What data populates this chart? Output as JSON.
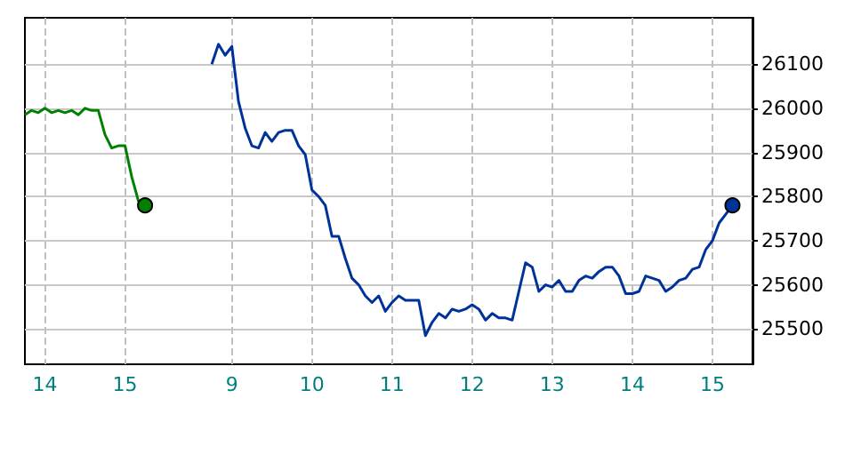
{
  "chart_data": {
    "type": "line",
    "categories": [
      null,
      null,
      null,
      "14",
      null,
      null,
      null,
      null,
      null,
      null,
      null,
      null,
      null,
      null,
      null,
      "15",
      null,
      null,
      null,
      null,
      null,
      null,
      null,
      null,
      null,
      null,
      null,
      null,
      null,
      null,
      null,
      "9",
      null,
      null,
      null,
      null,
      null,
      null,
      null,
      null,
      null,
      null,
      null,
      "10",
      null,
      null,
      null,
      null,
      null,
      null,
      null,
      null,
      null,
      null,
      null,
      "11",
      null,
      null,
      null,
      null,
      null,
      null,
      null,
      null,
      null,
      null,
      null,
      "12",
      null,
      null,
      null,
      null,
      null,
      null,
      null,
      null,
      null,
      null,
      null,
      "13",
      null,
      null,
      null,
      null,
      null,
      null,
      null,
      null,
      null,
      null,
      null,
      "14",
      null,
      null,
      null,
      null,
      null,
      null,
      null,
      null,
      null,
      null,
      null,
      "15",
      null,
      null,
      null,
      null,
      null,
      null
    ],
    "series": [
      {
        "color": "#008000",
        "values": [
          25985,
          25995,
          25990,
          26000,
          25990,
          25995,
          25990,
          25995,
          25985,
          26000,
          25995,
          25995,
          25940,
          25910,
          25915,
          25915,
          25845,
          25790,
          25780,
          null,
          null,
          null,
          null,
          null,
          null,
          null,
          null,
          null,
          null,
          null,
          null,
          null,
          null,
          null,
          null,
          null,
          null,
          null,
          null,
          null,
          null,
          null,
          null,
          null,
          null,
          null,
          null,
          null,
          null,
          null,
          null,
          null,
          null,
          null,
          null,
          null,
          null,
          null,
          null,
          null,
          null,
          null,
          null,
          null,
          null,
          null,
          null,
          null,
          null,
          null,
          null,
          null,
          null,
          null,
          null,
          null,
          null,
          null,
          null,
          null,
          null,
          null,
          null,
          null,
          null,
          null,
          null,
          null,
          null,
          null,
          null,
          null,
          null,
          null,
          null,
          null,
          null,
          null,
          null,
          null,
          null,
          null,
          null,
          null,
          null,
          null,
          null,
          null,
          null,
          null
        ]
      },
      {
        "color": "#003399",
        "values": [
          null,
          null,
          null,
          null,
          null,
          null,
          null,
          null,
          null,
          null,
          null,
          null,
          null,
          null,
          null,
          null,
          null,
          null,
          null,
          null,
          null,
          null,
          null,
          null,
          null,
          null,
          null,
          null,
          26100,
          26145,
          26120,
          26140,
          26015,
          25955,
          25915,
          25910,
          25945,
          25925,
          25945,
          25950,
          25950,
          25915,
          25895,
          25815,
          25800,
          25780,
          25710,
          25710,
          25660,
          25615,
          25600,
          25575,
          25560,
          25575,
          25540,
          25560,
          25575,
          25565,
          25565,
          25565,
          25485,
          25515,
          25535,
          25525,
          25545,
          25540,
          25545,
          25555,
          25545,
          25520,
          25535,
          25525,
          25525,
          25520,
          25585,
          25650,
          25640,
          25585,
          25600,
          25595,
          25610,
          25585,
          25585,
          25610,
          25620,
          25615,
          25630,
          25640,
          25640,
          25620,
          25580,
          25580,
          25585,
          25620,
          25615,
          25610,
          25585,
          25595,
          25610,
          25615,
          25635,
          25640,
          25680,
          25700,
          25740,
          25760,
          25780,
          null,
          null,
          null
        ]
      }
    ],
    "ylim": [
      25420,
      26205
    ],
    "yticks": [
      25500,
      25600,
      25700,
      25800,
      25900,
      26000,
      26100
    ],
    "grid": true
  }
}
